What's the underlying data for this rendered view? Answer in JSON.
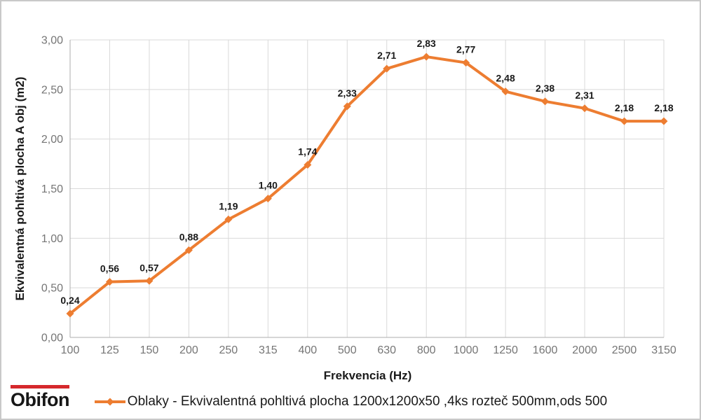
{
  "chart_data": {
    "type": "line",
    "title": "",
    "xlabel": "Frekvencia (Hz)",
    "ylabel": "Ekvivalentná pohltivá plocha A obj (m2)",
    "categories": [
      "100",
      "125",
      "150",
      "200",
      "250",
      "315",
      "400",
      "500",
      "630",
      "800",
      "1000",
      "1250",
      "1600",
      "2000",
      "2500",
      "3150"
    ],
    "series": [
      {
        "name": "Oblaky - Ekvivalentná pohltivá plocha 1200x1200x50 ,4ks rozteč 500mm,ods 500",
        "color": "#ED7D31",
        "marker": "diamond",
        "values": [
          0.24,
          0.56,
          0.57,
          0.88,
          1.19,
          1.4,
          1.74,
          2.33,
          2.71,
          2.83,
          2.77,
          2.48,
          2.38,
          2.31,
          2.18,
          2.18
        ],
        "point_labels": [
          "0,24",
          "0,56",
          "0,57",
          "0,88",
          "1,19",
          "1,40",
          "1,74",
          "2,33",
          "2,71",
          "2,83",
          "2,77",
          "2,48",
          "2,38",
          "2,31",
          "2,18",
          "2,18"
        ]
      }
    ],
    "ylim": [
      0,
      3
    ],
    "ytick_labels": [
      "0,00",
      "0,50",
      "1,00",
      "1,50",
      "2,00",
      "2,50",
      "3,00"
    ],
    "grid": true,
    "legend_position": "bottom"
  },
  "logo": {
    "text": "Obifon"
  },
  "colors": {
    "series": "#ED7D31",
    "grid": "#D9D9D9",
    "axis": "#ADADAD",
    "tick_text": "#757575",
    "label_text": "#1A1A1A",
    "logo_red": "#D5282C"
  }
}
